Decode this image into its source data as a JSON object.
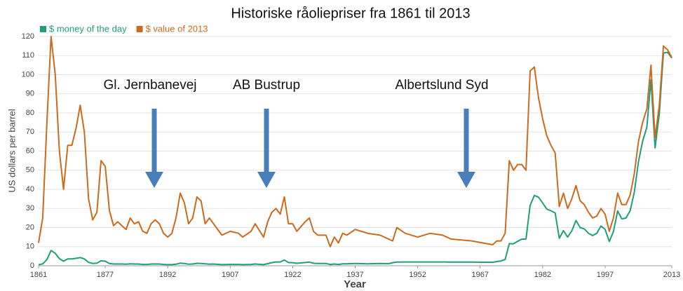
{
  "chart_data": {
    "type": "line",
    "title": "Historiske råoliepriser fra 1861 til 2013",
    "y_label": "US dollars per barrel",
    "x_label": "Year",
    "annotations": [
      "Gl. Jernbanevej",
      "AB Bustrup",
      "Albertslund Syd"
    ],
    "x": [
      1861,
      1862,
      1863,
      1864,
      1865,
      1866,
      1867,
      1868,
      1869,
      1870,
      1871,
      1872,
      1873,
      1874,
      1875,
      1876,
      1877,
      1878,
      1879,
      1880,
      1881,
      1882,
      1883,
      1884,
      1885,
      1886,
      1887,
      1888,
      1889,
      1890,
      1891,
      1892,
      1893,
      1894,
      1895,
      1896,
      1897,
      1898,
      1899,
      1900,
      1901,
      1902,
      1903,
      1905,
      1907,
      1909,
      1910,
      1912,
      1913,
      1915,
      1916,
      1917,
      1918,
      1919,
      1920,
      1921,
      1922,
      1923,
      1925,
      1926,
      1927,
      1928,
      1930,
      1931,
      1932,
      1933,
      1934,
      1935,
      1937,
      1940,
      1943,
      1945,
      1946,
      1947,
      1949,
      1952,
      1955,
      1958,
      1960,
      1965,
      1970,
      1971,
      1972,
      1973,
      1974,
      1975,
      1976,
      1977,
      1978,
      1979,
      1980,
      1981,
      1982,
      1983,
      1984,
      1985,
      1986,
      1987,
      1988,
      1989,
      1990,
      1991,
      1992,
      1993,
      1994,
      1995,
      1996,
      1997,
      1998,
      1999,
      2000,
      2001,
      2002,
      2003,
      2004,
      2005,
      2006,
      2007,
      2008,
      2009,
      2010,
      2011,
      2012,
      2013
    ],
    "series": [
      {
        "name": "$ money of the day",
        "color": "#1f9e7a",
        "values": [
          0.5,
          1,
          3.2,
          8,
          6.5,
          3.7,
          2.4,
          3.6,
          3.6,
          3.9,
          4.3,
          3.6,
          1.8,
          1.2,
          1.4,
          2.6,
          2.4,
          1.2,
          0.9,
          0.9,
          0.9,
          0.8,
          1,
          0.9,
          0.9,
          0.7,
          0.7,
          0.9,
          0.9,
          0.9,
          0.7,
          0.6,
          0.6,
          0.8,
          1.4,
          1.2,
          0.8,
          0.9,
          1.3,
          1.2,
          1,
          0.8,
          0.9,
          0.6,
          0.7,
          0.7,
          0.6,
          0.7,
          0.9,
          0.6,
          1.1,
          1.6,
          2,
          2,
          3,
          1.7,
          1.6,
          1.3,
          1.7,
          1.9,
          1.3,
          1.2,
          1.2,
          0.65,
          0.9,
          0.7,
          1,
          1,
          1.2,
          1,
          1.2,
          1.1,
          1.6,
          1.9,
          2,
          2,
          2,
          2,
          1.9,
          1.9,
          1.8,
          2.2,
          2.5,
          3.3,
          11.6,
          11.5,
          12.8,
          13.9,
          14,
          31.6,
          36.8,
          35.9,
          32.9,
          29.6,
          28.8,
          27.6,
          14.4,
          18.4,
          15,
          18.2,
          23.7,
          20,
          19.3,
          17,
          15.8,
          17,
          20.8,
          19.1,
          12.7,
          17.9,
          28.7,
          24.5,
          25,
          28.8,
          38.3,
          54.5,
          65.1,
          72.4,
          97.3,
          61.7,
          79.5,
          111.3,
          111.7,
          108.7
        ]
      },
      {
        "name": "$ value of 2013",
        "color": "#cc6a1e",
        "values": [
          12,
          25,
          75,
          120,
          100,
          60,
          40,
          63,
          63,
          72,
          84,
          70,
          35,
          24,
          28,
          55,
          52,
          29,
          21,
          23,
          21,
          19,
          25,
          22,
          23,
          18,
          17,
          22,
          24,
          22,
          17,
          15,
          17,
          25,
          38,
          33,
          22,
          25,
          36,
          34,
          22,
          25,
          22,
          16,
          18,
          17,
          15,
          18,
          22,
          15,
          23,
          28,
          30,
          27,
          36,
          22,
          22,
          18,
          23,
          25,
          18,
          16,
          16,
          10,
          15,
          12,
          17,
          16,
          19,
          17,
          16,
          14,
          13,
          20,
          17,
          15,
          17,
          16,
          14,
          13,
          11,
          13,
          13,
          17,
          55,
          50,
          53,
          53,
          50,
          102,
          104,
          88,
          77,
          68,
          63,
          59,
          31,
          38,
          30,
          35,
          42,
          34,
          32,
          28,
          25,
          26,
          30,
          27,
          18,
          25,
          38,
          32,
          32,
          37,
          48,
          65,
          75,
          82,
          105,
          67,
          84,
          115,
          113,
          109
        ]
      }
    ],
    "xlim": [
      1861,
      2013
    ],
    "xticks": [
      1861,
      1877,
      1892,
      1907,
      1922,
      1937,
      1952,
      1967,
      1982,
      1997,
      2013
    ],
    "ylim": [
      0,
      120
    ],
    "yticks": [
      0,
      10,
      20,
      30,
      40,
      50,
      60,
      70,
      80,
      90,
      100,
      110,
      120
    ],
    "grid": true
  }
}
